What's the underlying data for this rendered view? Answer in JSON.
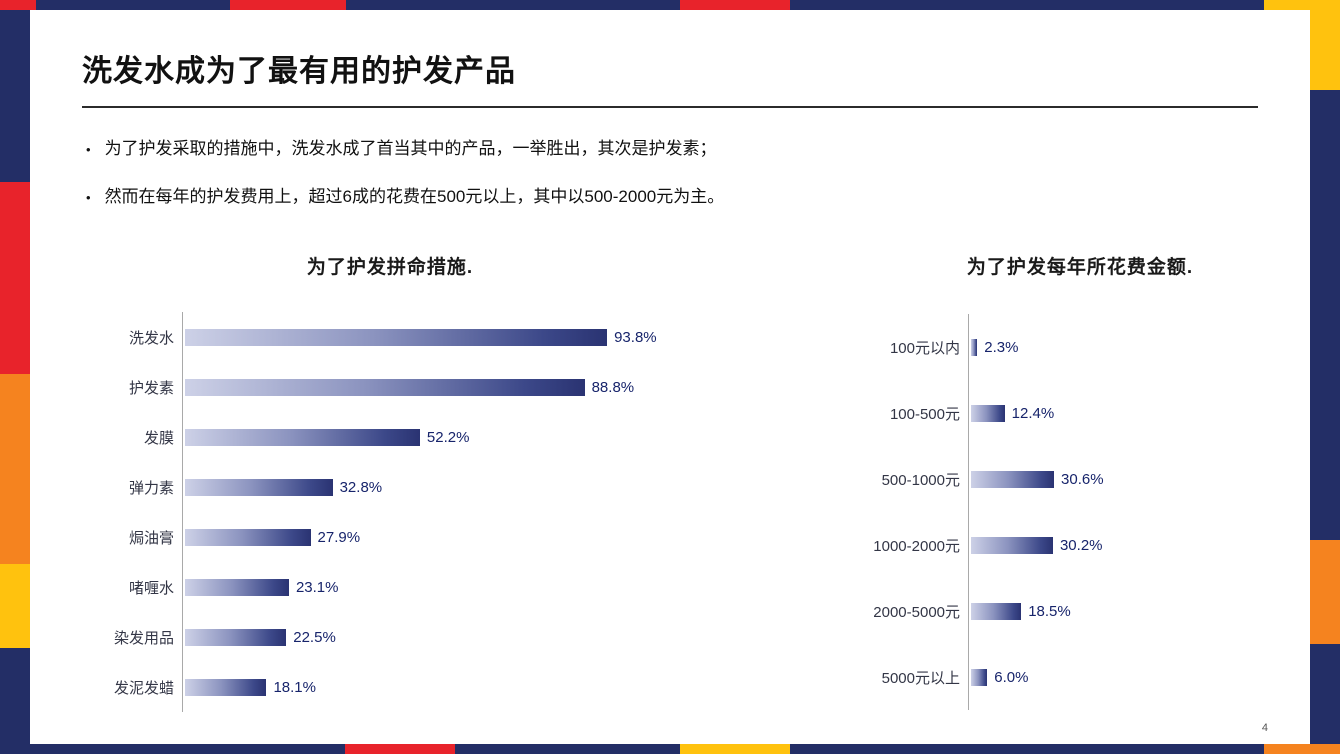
{
  "slide": {
    "title": "洗发水成为了最有用的护发产品",
    "bullet_marker": "•",
    "bullets": [
      "为了护发采取的措施中，洗发水成了首当其中的产品，一举胜出，其次是护发素；",
      "然而在每年的护发费用上，超过6成的花费在500元以上，其中以500-2000元为主。"
    ],
    "page_number": "4"
  },
  "chart_data": [
    {
      "type": "bar",
      "orientation": "horizontal",
      "title": "为了护发拼命措施.",
      "categories": [
        "洗发水",
        "护发素",
        "发膜",
        "弹力素",
        "焗油膏",
        "啫喱水",
        "染发用品",
        "发泥发蜡"
      ],
      "values": [
        93.8,
        88.8,
        52.2,
        32.8,
        27.9,
        23.1,
        22.5,
        18.1
      ],
      "value_labels": [
        "93.8%",
        "88.8%",
        "52.2%",
        "32.8%",
        "27.9%",
        "23.1%",
        "22.5%",
        "18.1%"
      ],
      "xlim": [
        0,
        100
      ],
      "grid": false,
      "legend": false
    },
    {
      "type": "bar",
      "orientation": "horizontal",
      "title": "为了护发每年所花费金额.",
      "categories": [
        "100元以内",
        "100-500元",
        "500-1000元",
        "1000-2000元",
        "2000-5000元",
        "5000元以上"
      ],
      "values": [
        2.3,
        12.4,
        30.6,
        30.2,
        18.5,
        6.0
      ],
      "value_labels": [
        "2.3%",
        "12.4%",
        "30.6%",
        "30.2%",
        "18.5%",
        "6.0%"
      ],
      "xlim": [
        0,
        35
      ],
      "grid": false,
      "legend": false
    }
  ],
  "colors": {
    "frame_navy": "#232e66",
    "frame_red": "#e8232b",
    "frame_orange": "#f5831f",
    "frame_yellow": "#ffc20e",
    "bar_gradient_light": "#cdd1e7",
    "bar_gradient_dark": "#2a3372",
    "value_text": "#17246b",
    "body_text": "#111111"
  }
}
